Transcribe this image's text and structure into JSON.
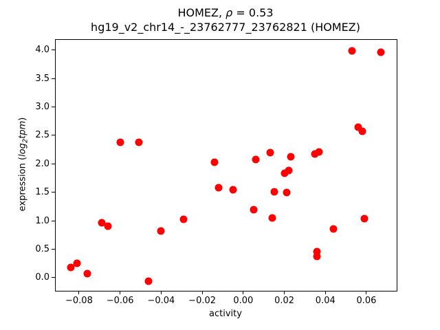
{
  "chart_data": {
    "type": "scatter",
    "title": "HOMEZ, ρ = 0.53",
    "title_parts": {
      "prefix": "HOMEZ, ",
      "rho": "ρ",
      "suffix": " = 0.53"
    },
    "subtitle": "hg19_v2_chr14_-_23762777_23762821 (HOMEZ)",
    "xlabel": "activity",
    "ylabel": "expression (log2tpm)",
    "ylabel_parts": {
      "prefix": "expression (",
      "log": "log",
      "sub": "2",
      "tpm": "tpm",
      "suffix": ")"
    },
    "xlim": [
      -0.0917,
      0.0744
    ],
    "ylim": [
      -0.22,
      4.19
    ],
    "x_ticks": {
      "values": [
        -0.08,
        -0.06,
        -0.04,
        -0.02,
        0.0,
        0.02,
        0.04,
        0.06
      ],
      "labels": [
        "−0.08",
        "−0.06",
        "−0.04",
        "−0.02",
        "0.00",
        "0.02",
        "0.04",
        "0.06"
      ]
    },
    "y_ticks": {
      "values": [
        0.0,
        0.5,
        1.0,
        1.5,
        2.0,
        2.5,
        3.0,
        3.5,
        4.0
      ],
      "labels": [
        "0.0",
        "0.5",
        "1.0",
        "1.5",
        "2.0",
        "2.5",
        "3.0",
        "3.5",
        "4.0"
      ]
    },
    "marker": {
      "color": "#ff0000",
      "shape": "circle"
    },
    "grid": false,
    "legend": false,
    "points": [
      [
        -0.084,
        0.18
      ],
      [
        -0.081,
        0.25
      ],
      [
        -0.076,
        0.07
      ],
      [
        -0.069,
        0.97
      ],
      [
        -0.066,
        0.9
      ],
      [
        -0.06,
        2.38
      ],
      [
        -0.051,
        2.38
      ],
      [
        -0.046,
        -0.06
      ],
      [
        -0.04,
        0.82
      ],
      [
        -0.029,
        1.02
      ],
      [
        -0.014,
        2.03
      ],
      [
        -0.012,
        1.58
      ],
      [
        -0.005,
        1.54
      ],
      [
        0.005,
        1.19
      ],
      [
        0.006,
        2.07
      ],
      [
        0.013,
        2.2
      ],
      [
        0.014,
        1.05
      ],
      [
        0.015,
        1.51
      ],
      [
        0.02,
        1.84
      ],
      [
        0.021,
        1.49
      ],
      [
        0.022,
        1.88
      ],
      [
        0.023,
        2.12
      ],
      [
        0.035,
        2.17
      ],
      [
        0.037,
        2.21
      ],
      [
        0.036,
        0.46
      ],
      [
        0.036,
        0.37
      ],
      [
        0.044,
        0.85
      ],
      [
        0.053,
        3.98
      ],
      [
        0.056,
        2.64
      ],
      [
        0.058,
        2.57
      ],
      [
        0.059,
        1.04
      ],
      [
        0.067,
        3.96
      ]
    ]
  }
}
